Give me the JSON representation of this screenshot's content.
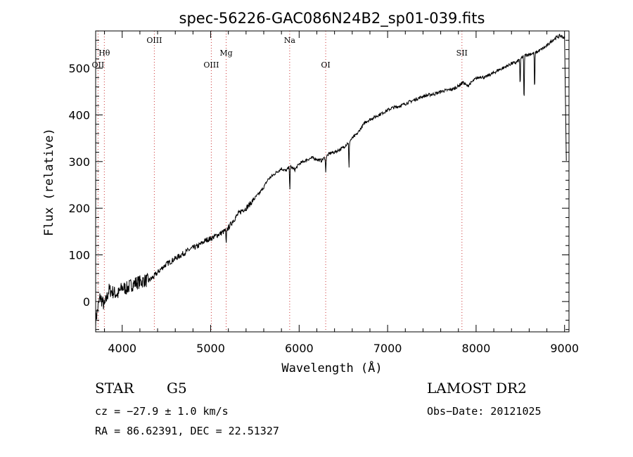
{
  "chart_data": {
    "type": "line",
    "title": "spec-56226-GAC086N24B2_sp01-039.fits",
    "xlabel": "Wavelength (Å)",
    "ylabel": "Flux (relative)",
    "xlim": [
      3700,
      9050
    ],
    "ylim": [
      -65,
      580
    ],
    "xticks": [
      4000,
      5000,
      6000,
      7000,
      8000,
      9000
    ],
    "yticks": [
      0,
      100,
      200,
      300,
      400,
      500
    ],
    "grid": false,
    "series": [
      {
        "color": "#000000",
        "x": [
          3700,
          3750,
          3800,
          3850,
          3900,
          3950,
          4000,
          4050,
          4100,
          4150,
          4200,
          4250,
          4300,
          4350,
          4400,
          4450,
          4500,
          4550,
          4600,
          4650,
          4700,
          4750,
          4800,
          4850,
          4900,
          4950,
          5000,
          5050,
          5100,
          5150,
          5200,
          5250,
          5300,
          5350,
          5400,
          5450,
          5500,
          5550,
          5600,
          5650,
          5700,
          5750,
          5800,
          5850,
          5900,
          5950,
          6000,
          6050,
          6100,
          6150,
          6200,
          6250,
          6300,
          6350,
          6400,
          6450,
          6500,
          6550,
          6600,
          6650,
          6700,
          6750,
          6800,
          6850,
          6900,
          6950,
          7000,
          7050,
          7100,
          7150,
          7200,
          7250,
          7300,
          7350,
          7400,
          7450,
          7500,
          7550,
          7600,
          7650,
          7700,
          7750,
          7800,
          7850,
          7900,
          7950,
          8000,
          8050,
          8100,
          8150,
          8200,
          8250,
          8300,
          8350,
          8400,
          8450,
          8500,
          8550,
          8600,
          8650,
          8700,
          8750,
          8800,
          8850,
          8900,
          8950,
          9000,
          9020
        ],
        "y": [
          -40,
          10,
          -10,
          25,
          20,
          15,
          30,
          28,
          35,
          40,
          42,
          45,
          45,
          52,
          62,
          72,
          80,
          86,
          92,
          98,
          104,
          110,
          115,
          118,
          125,
          132,
          135,
          140,
          145,
          150,
          158,
          172,
          185,
          195,
          200,
          210,
          222,
          232,
          245,
          262,
          270,
          278,
          285,
          280,
          290,
          282,
          295,
          300,
          305,
          308,
          305,
          302,
          310,
          318,
          320,
          325,
          330,
          340,
          350,
          358,
          372,
          385,
          390,
          395,
          400,
          405,
          410,
          415,
          417,
          420,
          424,
          428,
          432,
          436,
          440,
          442,
          444,
          446,
          450,
          452,
          454,
          456,
          462,
          470,
          462,
          470,
          478,
          482,
          480,
          486,
          490,
          496,
          500,
          505,
          510,
          512,
          520,
          528,
          530,
          532,
          536,
          542,
          548,
          558,
          565,
          570,
          565,
          300
        ],
        "absorption_dips": [
          {
            "x": 5175,
            "depth": 35
          },
          {
            "x": 5895,
            "depth": 50
          },
          {
            "x": 6300,
            "depth": 35
          },
          {
            "x": 6563,
            "depth": 60
          },
          {
            "x": 8498,
            "depth": 60
          },
          {
            "x": 8542,
            "depth": 105
          },
          {
            "x": 8662,
            "depth": 85
          }
        ]
      }
    ],
    "reference_lines": [
      {
        "label": "Hθ",
        "x": 3798,
        "color": "#cc3333",
        "row": 2
      },
      {
        "label": "OII",
        "x": 3727,
        "color": "#cc3333",
        "row": 3
      },
      {
        "label": "OIII",
        "x": 4363,
        "color": "#cc3333",
        "row": 1
      },
      {
        "label": "OIII",
        "x": 5007,
        "color": "#cc3333",
        "row": 3
      },
      {
        "label": "Mg",
        "x": 5175,
        "color": "#cc3333",
        "row": 2
      },
      {
        "label": "Na",
        "x": 5893,
        "color": "#cc3333",
        "row": 1
      },
      {
        "label": "OI",
        "x": 6300,
        "color": "#cc3333",
        "row": 3
      },
      {
        "label": "SII",
        "x": 7840,
        "color": "#cc3333",
        "row": 2
      }
    ]
  },
  "info": {
    "class": "STAR",
    "subclass": "G5",
    "survey": "LAMOST DR2",
    "cz": "cz = −27.9 ± 1.0 km/s",
    "obs_date": "Obs−Date: 20121025",
    "coords": "RA =  86.62391, DEC =  22.51327"
  }
}
